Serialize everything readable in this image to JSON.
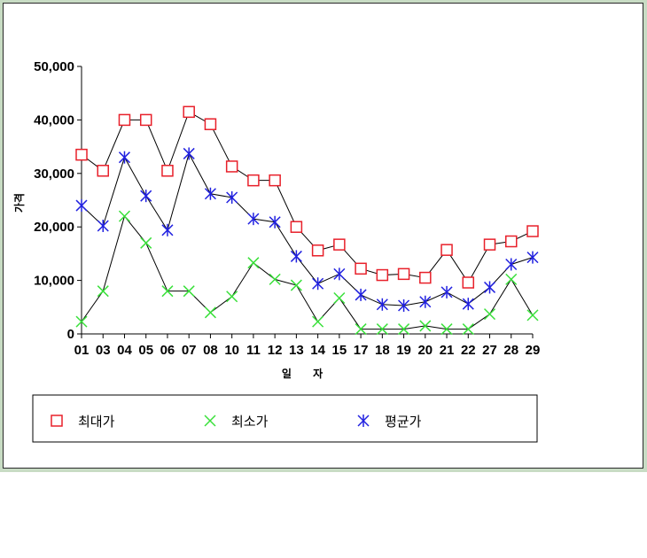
{
  "chart_data": {
    "type": "line",
    "title": "",
    "xlabel": "일 자",
    "ylabel": "가격",
    "categories": [
      "01",
      "03",
      "04",
      "05",
      "06",
      "07",
      "08",
      "10",
      "11",
      "12",
      "13",
      "14",
      "15",
      "17",
      "18",
      "19",
      "20",
      "21",
      "22",
      "27",
      "28",
      "29"
    ],
    "ylim": [
      0,
      50000
    ],
    "yticks": [
      "0",
      "10,000",
      "20,000",
      "30,000",
      "40,000",
      "50,000"
    ],
    "ytick_values": [
      0,
      10000,
      20000,
      30000,
      40000,
      50000
    ],
    "grid": false,
    "legend_position": "bottom",
    "series": [
      {
        "name": "최대가",
        "marker": "square",
        "color": "#e8202a",
        "values": [
          33500,
          30500,
          40000,
          40000,
          30500,
          41500,
          39200,
          31300,
          28700,
          28700,
          20000,
          15600,
          16700,
          12200,
          11000,
          11200,
          10500,
          15700,
          9600,
          16700,
          17300,
          19200
        ]
      },
      {
        "name": "최소가",
        "marker": "x",
        "color": "#39e03a",
        "values": [
          2300,
          8000,
          22000,
          17000,
          8000,
          8000,
          4000,
          7000,
          13300,
          10200,
          9100,
          2300,
          6700,
          900,
          900,
          900,
          1500,
          900,
          900,
          3700,
          10200,
          3500
        ]
      },
      {
        "name": "평균가",
        "marker": "asterisk",
        "color": "#2020e0",
        "values": [
          24000,
          20200,
          33000,
          25800,
          19400,
          33700,
          26200,
          25500,
          21500,
          20900,
          14500,
          9400,
          11200,
          7300,
          5500,
          5300,
          6000,
          7800,
          5600,
          8700,
          13000,
          14300
        ]
      }
    ]
  }
}
